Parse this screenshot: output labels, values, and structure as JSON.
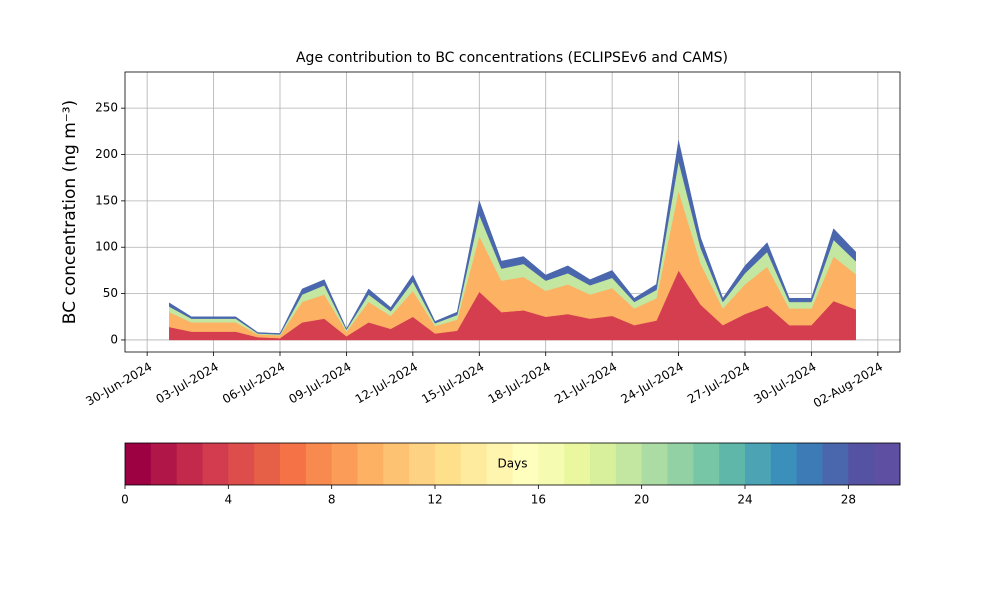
{
  "chart_data": {
    "type": "stacked_area",
    "title": "Age contribution to BC concentrations (ECLIPSEv6 and CAMS)",
    "y_label": "BC concentration (ng m⁻³)",
    "x": [
      "2024-07-01",
      "2024-07-02",
      "2024-07-03",
      "2024-07-04",
      "2024-07-05",
      "2024-07-06",
      "2024-07-07",
      "2024-07-08",
      "2024-07-09",
      "2024-07-10",
      "2024-07-11",
      "2024-07-12",
      "2024-07-13",
      "2024-07-14",
      "2024-07-15",
      "2024-07-16",
      "2024-07-17",
      "2024-07-18",
      "2024-07-19",
      "2024-07-20",
      "2024-07-21",
      "2024-07-22",
      "2024-07-23",
      "2024-07-24",
      "2024-07-25",
      "2024-07-26",
      "2024-07-27",
      "2024-07-28",
      "2024-07-29",
      "2024-07-30",
      "2024-07-31",
      "2024-08-01"
    ],
    "series": [
      {
        "color": "#d53e4f",
        "values": [
          14,
          9,
          9,
          9,
          3,
          2,
          19,
          23,
          4,
          19,
          12,
          25,
          7,
          10,
          52,
          30,
          32,
          25,
          28,
          23,
          26,
          16,
          21,
          75,
          38,
          16,
          28,
          37,
          16,
          16,
          42,
          33
        ]
      },
      {
        "color": "#fdb163",
        "values": [
          16,
          10,
          10,
          10,
          3,
          3,
          22,
          26,
          5,
          22,
          14,
          28,
          8,
          12,
          60,
          34,
          36,
          28,
          32,
          26,
          30,
          18,
          24,
          86,
          44,
          18,
          32,
          42,
          18,
          18,
          48,
          38
        ]
      },
      {
        "color": "#c3e6a0",
        "values": [
          6,
          4,
          4,
          4,
          1,
          1,
          8,
          10,
          2,
          8,
          5,
          10,
          3,
          5,
          23,
          13,
          14,
          11,
          12,
          10,
          11,
          7,
          9,
          32,
          17,
          7,
          12,
          16,
          7,
          7,
          18,
          14
        ]
      },
      {
        "color": "#4a67ad",
        "values": [
          4,
          2,
          2,
          2,
          1,
          1,
          6,
          6,
          1,
          6,
          4,
          7,
          2,
          3,
          15,
          8,
          8,
          6,
          8,
          6,
          8,
          4,
          6,
          22,
          11,
          4,
          8,
          10,
          4,
          4,
          12,
          10
        ]
      }
    ],
    "xlim": [
      "2024-06-29",
      "2024-08-03"
    ],
    "xticks": [
      {
        "value": "2024-06-30",
        "label": "30-Jun-2024"
      },
      {
        "value": "2024-07-03",
        "label": "03-Jul-2024"
      },
      {
        "value": "2024-07-06",
        "label": "06-Jul-2024"
      },
      {
        "value": "2024-07-09",
        "label": "09-Jul-2024"
      },
      {
        "value": "2024-07-12",
        "label": "12-Jul-2024"
      },
      {
        "value": "2024-07-15",
        "label": "15-Jul-2024"
      },
      {
        "value": "2024-07-18",
        "label": "18-Jul-2024"
      },
      {
        "value": "2024-07-21",
        "label": "21-Jul-2024"
      },
      {
        "value": "2024-07-24",
        "label": "24-Jul-2024"
      },
      {
        "value": "2024-07-27",
        "label": "27-Jul-2024"
      },
      {
        "value": "2024-07-30",
        "label": "30-Jul-2024"
      },
      {
        "value": "2024-08-02",
        "label": "02-Aug-2024"
      }
    ],
    "ylim": [
      -13,
      289
    ],
    "yticks": [
      0,
      50,
      100,
      150,
      200,
      250
    ],
    "grid": true,
    "colorbar": {
      "label": "Days",
      "lim": [
        0,
        30
      ],
      "ticks": [
        0,
        4,
        8,
        12,
        16,
        20,
        24,
        28
      ],
      "colors": [
        "#9e0142",
        "#b01647",
        "#c2294a",
        "#d33c4e",
        "#dd4d4b",
        "#e65f47",
        "#f47245",
        "#f88a50",
        "#fb9d59",
        "#fdb163",
        "#fdc373",
        "#fed283",
        "#fee08b",
        "#feeb9e",
        "#fff5af",
        "#fefebd",
        "#f5fbb1",
        "#eaf79f",
        "#d8ef9b",
        "#c3e6a0",
        "#aadca4",
        "#91d1a4",
        "#77c6a5",
        "#5fb7a9",
        "#4ba3b3",
        "#3a8fbb",
        "#3c7bb6",
        "#4a67ad",
        "#5652a3",
        "#5e4fa2"
      ]
    }
  }
}
